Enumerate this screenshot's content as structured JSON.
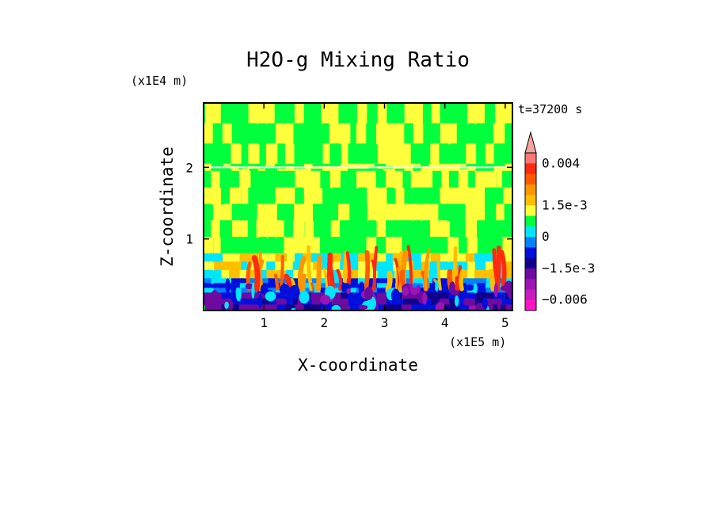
{
  "chart_data": {
    "type": "heatmap",
    "title": "H2O-g Mixing Ratio",
    "xlabel": "X-coordinate",
    "ylabel": "Z-coordinate",
    "x_unit": "(x1E5 m)",
    "y_unit": "(x1E4 m)",
    "time_label": "t=37200 s",
    "xlim": [
      0,
      5.12
    ],
    "ylim": [
      0,
      2.9
    ],
    "x_ticks": [
      1,
      2,
      3,
      4,
      5
    ],
    "x_tick_labels": [
      "1",
      "2",
      "3",
      "4",
      "5"
    ],
    "y_ticks": [
      1,
      2
    ],
    "y_tick_labels": [
      "1",
      "2"
    ],
    "colorbar": {
      "levels": [
        {
          "value": 0.0045,
          "color": "#f5a3a0"
        },
        {
          "value": 0.004,
          "color": "#ff7878"
        },
        {
          "value": 0.003,
          "color": "#ff2a10"
        },
        {
          "value": 0.0025,
          "color": "#ff5a00"
        },
        {
          "value": 0.002,
          "color": "#ff9600"
        },
        {
          "value": 0.0015,
          "color": "#ffbe00"
        },
        {
          "value": 0.001,
          "color": "#ffff3c"
        },
        {
          "value": 0.0005,
          "color": "#00ff3c"
        },
        {
          "value": 0,
          "color": "#00e6ff"
        },
        {
          "value": -0.0005,
          "color": "#0082ff"
        },
        {
          "value": -0.001,
          "color": "#0010dc"
        },
        {
          "value": -0.0015,
          "color": "#10008c"
        },
        {
          "value": -0.003,
          "color": "#6e0aa0"
        },
        {
          "value": -0.0045,
          "color": "#9c14b4"
        },
        {
          "value": -0.006,
          "color": "#c81ebe"
        },
        {
          "value": -0.0075,
          "color": "#ff14c8"
        }
      ],
      "labels": [
        "0.004",
        "1.5e-3",
        "0",
        "−1.5e-3",
        "−0.006"
      ]
    },
    "field_summary": [
      {
        "z_range": [
          0,
          0.25
        ],
        "dominant": "purple / blue",
        "note": "surface layer, negative anomalies"
      },
      {
        "z_range": [
          0.25,
          0.5
        ],
        "dominant": "blue / cyan",
        "note": "mixed negative"
      },
      {
        "z_range": [
          0.5,
          0.8
        ],
        "dominant": "yellow / orange / red",
        "note": "convective plumes, positive anomalies"
      },
      {
        "z_range": [
          0.8,
          2.0
        ],
        "dominant": "green / yellow",
        "note": "mid troposphere"
      },
      {
        "z_range": [
          2.0,
          2.9
        ],
        "dominant": "green / yellow",
        "note": "upper layer, horizontal band near 2.0"
      }
    ]
  }
}
